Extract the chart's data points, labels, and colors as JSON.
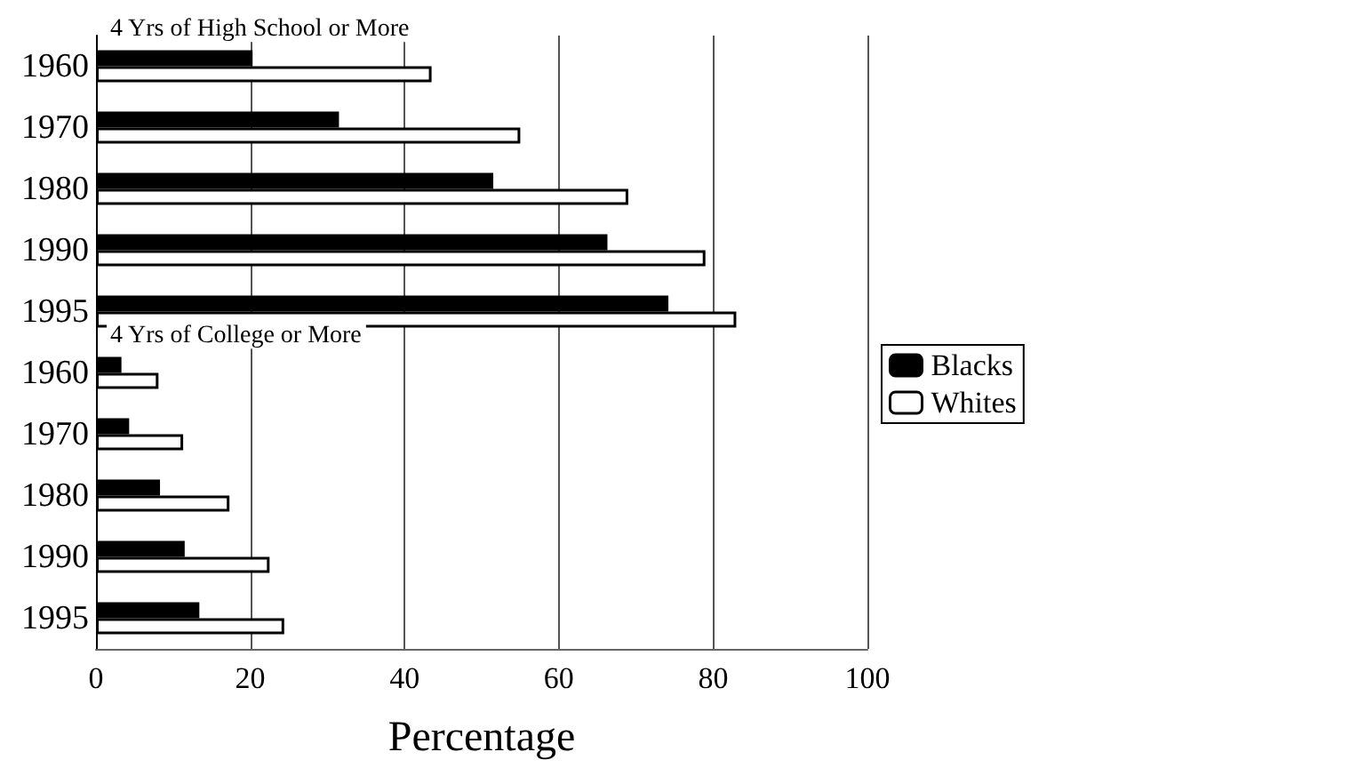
{
  "chart_data": {
    "type": "bar",
    "orientation": "horizontal",
    "xlabel": "Percentage",
    "categories": [
      "1960",
      "1970",
      "1980",
      "1990",
      "1995",
      "1960",
      "1970",
      "1980",
      "1990",
      "1995"
    ],
    "series": [
      {
        "name": "Blacks",
        "color": "#000000",
        "values": [
          20.3,
          31.5,
          51.5,
          66.3,
          74.2,
          3.3,
          4.3,
          8.3,
          11.5,
          13.4
        ]
      },
      {
        "name": "Whites",
        "color": "#ffffff",
        "values": [
          43.5,
          55,
          69,
          79,
          83,
          8.1,
          11.3,
          17.3,
          22.5,
          24.4
        ]
      }
    ],
    "xlim": [
      0,
      100
    ],
    "xticks": [
      0,
      20,
      40,
      60,
      80,
      100
    ],
    "grid": "x",
    "legend": "right",
    "annotations": [
      "4 Yrs of High School or More",
      "4 Yrs of College or More"
    ]
  }
}
